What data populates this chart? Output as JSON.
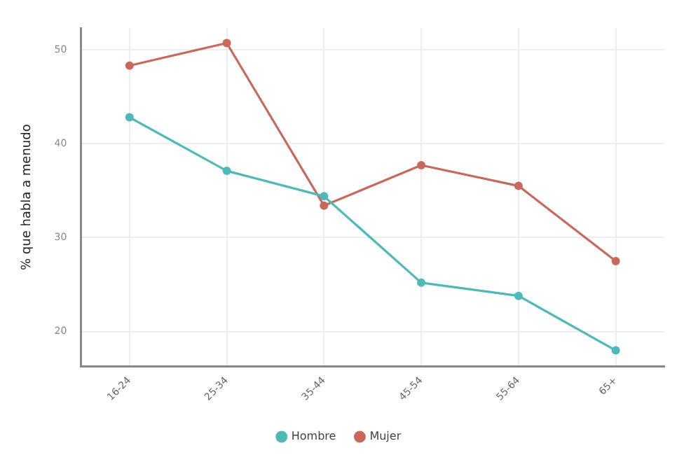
{
  "chart_data": {
    "type": "line",
    "ylabel": "% que habla a menudo",
    "categories": [
      "16-24",
      "25-34",
      "35-44",
      "45-54",
      "55-64",
      "65+"
    ],
    "series": [
      {
        "name": "Hombre",
        "color": "#4fb8b8",
        "values": [
          42.8,
          37.1,
          34.4,
          25.2,
          23.8,
          18.0
        ]
      },
      {
        "name": "Mujer",
        "color": "#c8695c",
        "values": [
          48.3,
          50.7,
          33.4,
          37.7,
          35.5,
          27.5
        ]
      }
    ],
    "ylim": [
      16.3,
      52.3
    ],
    "yticks": [
      20,
      30,
      40,
      50
    ],
    "grid": true,
    "legend": "bottom",
    "marker": "circle",
    "line_style": "solid"
  }
}
